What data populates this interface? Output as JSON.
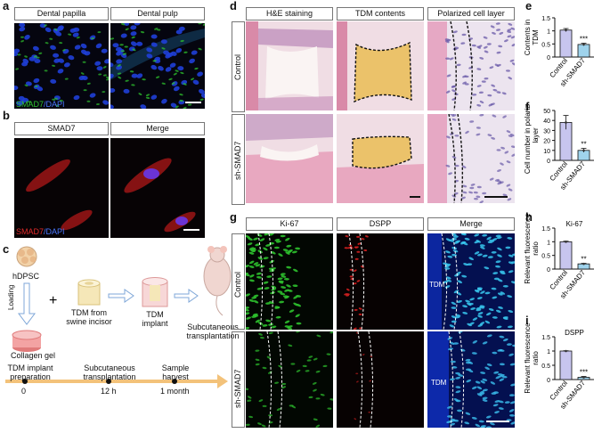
{
  "panel_letters": {
    "a": "a",
    "b": "b",
    "c": "c",
    "d": "d",
    "e": "e",
    "f": "f",
    "g": "g",
    "h": "h",
    "i": "i"
  },
  "panel_a": {
    "headers": [
      "Dental papilla",
      "Dental pulp"
    ],
    "legend_green": "SMAD7",
    "legend_blue": "/DAPI"
  },
  "panel_b": {
    "headers": [
      "SMAD7",
      "Merge"
    ],
    "legend_red": "SMAD7",
    "legend_blue": "/DAPI"
  },
  "panel_c": {
    "cell": "hDPSC",
    "loading": "Loading",
    "gel": "Collagen gel",
    "tdm": "TDM from\nswine incisor",
    "implant": "TDM\nimplant",
    "transplant": "Subcutaneous\ntransplantation",
    "timeline": [
      {
        "label": "TDM implant\npreparation",
        "tick": "0"
      },
      {
        "label": "Subcutaneous\ntransplantation",
        "tick": "12 h"
      },
      {
        "label": "Sample\nharvest",
        "tick": "1 month"
      }
    ]
  },
  "panel_d": {
    "headers": [
      "H&E staining",
      "TDM contents",
      "Polarized cell layer"
    ],
    "rows": [
      "Control",
      "sh-SMAD7"
    ]
  },
  "panel_g": {
    "headers": [
      "Ki-67",
      "DSPP",
      "Merge"
    ],
    "rows": [
      "Control",
      "sh-SMAD7"
    ],
    "tdm_label": "TDM"
  },
  "colors": {
    "bar_control": "#c7c5ee",
    "bar_sh": "#9fd3ec",
    "ki67": "#2ec12e",
    "dspp": "#d42020",
    "dapi": "#1e3fe0"
  },
  "chart_data": [
    {
      "id": "e",
      "type": "bar",
      "categories": [
        "Control",
        "sh-SMAD7"
      ],
      "values": [
        1.03,
        0.48
      ],
      "errors": [
        0.06,
        0.05
      ],
      "ylabel": "Contents in\nTDM",
      "yticks": [
        0,
        0.5,
        1.0,
        1.5
      ],
      "ylim": [
        0,
        1.5
      ],
      "annotation": "***"
    },
    {
      "id": "f",
      "type": "bar",
      "categories": [
        "Control",
        "sh-SMAD7"
      ],
      "values": [
        38,
        10
      ],
      "errors": [
        7,
        2
      ],
      "ylabel": "Cell number in polarized\nlayer",
      "yticks": [
        0,
        10,
        20,
        30,
        40,
        50
      ],
      "ylim": [
        0,
        50
      ],
      "annotation": "**"
    },
    {
      "id": "h",
      "type": "bar",
      "title": "Ki-67",
      "categories": [
        "Control",
        "sh-SMAD7"
      ],
      "values": [
        1.0,
        0.19
      ],
      "errors": [
        0.02,
        0.02
      ],
      "ylabel": "Relevant fluorescence\nratio",
      "yticks": [
        0,
        0.5,
        1.0,
        1.5
      ],
      "ylim": [
        0,
        1.5
      ],
      "annotation": "**"
    },
    {
      "id": "i",
      "type": "bar",
      "title": "DSPP",
      "categories": [
        "Control",
        "sh-SMAD7"
      ],
      "values": [
        1.0,
        0.08
      ],
      "errors": [
        0.01,
        0.03
      ],
      "ylabel": "Relevant fluorescence\nratio",
      "yticks": [
        0,
        0.5,
        1.0,
        1.5
      ],
      "ylim": [
        0,
        1.5
      ],
      "annotation": "***"
    }
  ]
}
